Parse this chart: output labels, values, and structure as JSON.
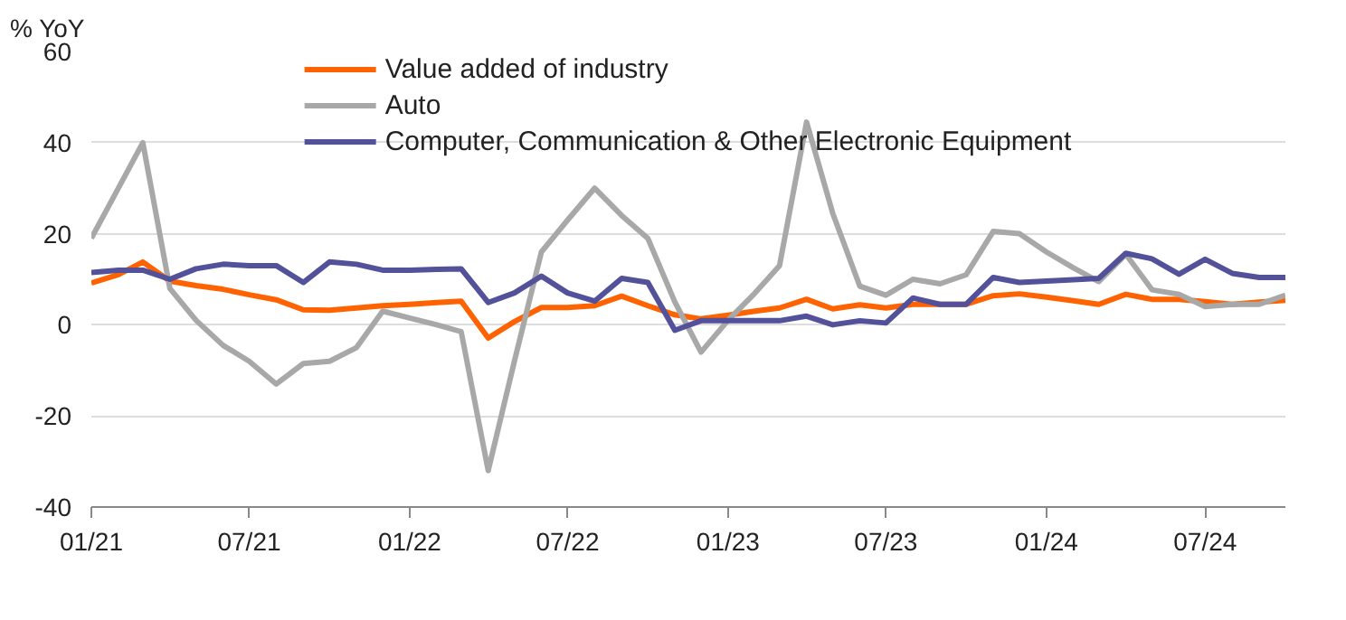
{
  "chart_data": {
    "type": "line",
    "ylabel": "% YoY",
    "x": [
      "2021-01",
      "2021-02",
      "2021-03",
      "2021-04",
      "2021-05",
      "2021-06",
      "2021-07",
      "2021-08",
      "2021-09",
      "2021-10",
      "2021-11",
      "2021-12",
      "2022-01",
      "2022-02",
      "2022-03",
      "2022-04",
      "2022-05",
      "2022-06",
      "2022-07",
      "2022-08",
      "2022-09",
      "2022-10",
      "2022-11",
      "2022-12",
      "2023-01",
      "2023-02",
      "2023-03",
      "2023-04",
      "2023-05",
      "2023-06",
      "2023-07",
      "2023-08",
      "2023-09",
      "2023-10",
      "2023-11",
      "2023-12",
      "2024-01",
      "2024-02",
      "2024-03",
      "2024-04",
      "2024-05",
      "2024-06",
      "2024-07",
      "2024-08",
      "2024-09",
      "2024-10"
    ],
    "series": [
      {
        "name": "Value added of industry",
        "color": "#ff6200",
        "values": [
          9.2,
          11,
          13.8,
          9.6,
          8.6,
          7.8,
          6.6,
          5.5,
          3.3,
          3.2,
          3.7,
          4.2,
          4.5,
          4.9,
          5.2,
          -2.9,
          0.7,
          3.8,
          3.8,
          4.2,
          6.3,
          4.2,
          2.2,
          1.3,
          2.1,
          3,
          3.7,
          5.6,
          3.5,
          4.4,
          3.7,
          4.5,
          4.5,
          4.5,
          6.4,
          6.8,
          6.1,
          5.3,
          4.5,
          6.7,
          5.6,
          5.6,
          5.1,
          4.5,
          5,
          5.4
        ]
      },
      {
        "name": "Auto",
        "color": "#a8a8a8",
        "values": [
          19,
          30,
          40,
          8,
          1,
          -4.5,
          -8,
          -13,
          -8.5,
          -8,
          -5,
          3,
          1.5,
          0,
          -1.5,
          -32,
          -8,
          16,
          23,
          30,
          24,
          19,
          5,
          -6,
          1,
          7,
          13,
          44.5,
          24.5,
          8.5,
          6.5,
          10,
          9,
          11,
          20.5,
          20,
          16,
          12.5,
          9.5,
          15.5,
          7.7,
          6.7,
          4,
          4.5,
          4.5,
          6.5
        ]
      },
      {
        "name": "Computer, Communication & Other Electronic Equipment",
        "color": "#525199",
        "values": [
          11.5,
          12,
          12,
          10,
          12.3,
          13.3,
          13,
          13,
          9.3,
          13.8,
          13.3,
          12,
          12,
          12.2,
          12.3,
          4.9,
          7,
          10.7,
          7,
          5.2,
          10.2,
          9.3,
          -1.2,
          0.9,
          0.9,
          0.9,
          0.9,
          1.9,
          0,
          0.9,
          0.4,
          5.9,
          4.5,
          4.5,
          10.4,
          9.3,
          9.6,
          9.9,
          10.2,
          15.7,
          14.5,
          11.1,
          14.4,
          11.3,
          10.4,
          10.4
        ]
      }
    ],
    "xlim": [
      "2021-01",
      "2024-10"
    ],
    "xticks": [
      {
        "value": "2021-01",
        "label": "01/21"
      },
      {
        "value": "2021-07",
        "label": "07/21"
      },
      {
        "value": "2022-01",
        "label": "01/22"
      },
      {
        "value": "2022-07",
        "label": "07/22"
      },
      {
        "value": "2023-01",
        "label": "01/23"
      },
      {
        "value": "2023-07",
        "label": "07/23"
      },
      {
        "value": "2024-01",
        "label": "01/24"
      },
      {
        "value": "2024-07",
        "label": "07/24"
      }
    ],
    "ylim": [
      -40,
      60
    ],
    "yticks": [
      -40,
      -20,
      0,
      20,
      40,
      60
    ],
    "grid": "y",
    "legend": "top",
    "marker": "none",
    "line_style": "solid"
  }
}
